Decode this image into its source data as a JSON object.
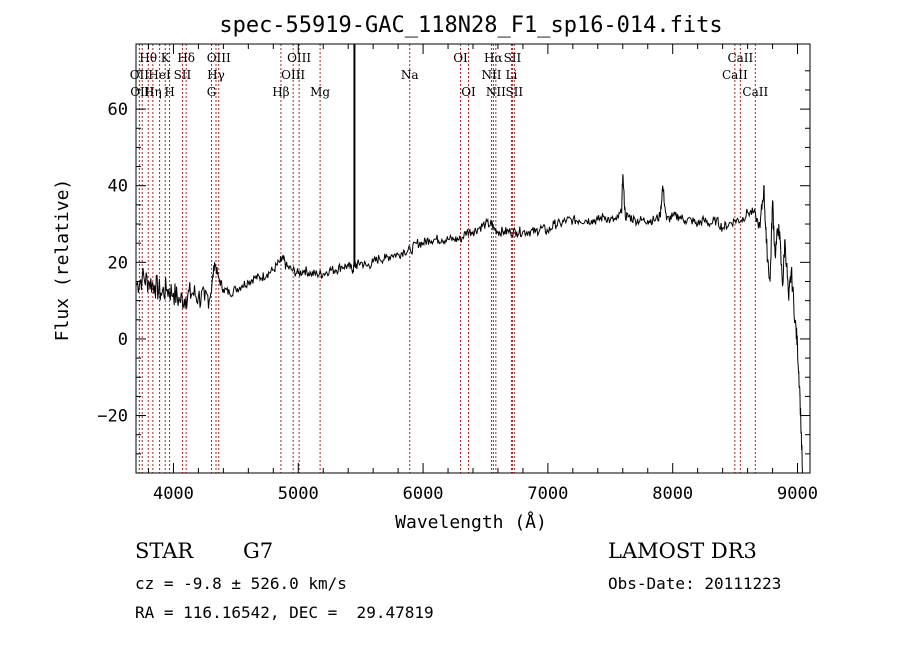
{
  "chart_data": {
    "type": "line",
    "title": "spec-55919-GAC_118N28_F1_sp16-014.fits",
    "xlabel": "Wavelength (Å)",
    "ylabel": "Flux (relative)",
    "xlim": [
      3700,
      9100
    ],
    "ylim": [
      -35,
      77
    ],
    "x_ticks": [
      4000,
      5000,
      6000,
      7000,
      8000,
      9000
    ],
    "y_ticks": [
      -20,
      0,
      20,
      40,
      60
    ],
    "grid": false,
    "spectrum": {
      "name": "flux",
      "x": [
        3700,
        3750,
        3800,
        3850,
        3900,
        3950,
        4000,
        4050,
        4100,
        4150,
        4200,
        4250,
        4300,
        4330,
        4360,
        4400,
        4450,
        4500,
        4550,
        4600,
        4650,
        4700,
        4750,
        4800,
        4850,
        4880,
        4900,
        4950,
        5000,
        5050,
        5100,
        5150,
        5200,
        5250,
        5300,
        5350,
        5400,
        5440,
        5450,
        5460,
        5500,
        5550,
        5600,
        5650,
        5700,
        5750,
        5800,
        5850,
        5900,
        5950,
        6000,
        6050,
        6100,
        6150,
        6200,
        6250,
        6300,
        6350,
        6400,
        6450,
        6500,
        6550,
        6563,
        6600,
        6650,
        6700,
        6750,
        6800,
        6850,
        6900,
        6950,
        7000,
        7050,
        7100,
        7150,
        7200,
        7250,
        7300,
        7350,
        7400,
        7450,
        7500,
        7550,
        7590,
        7600,
        7620,
        7650,
        7700,
        7750,
        7800,
        7850,
        7900,
        7920,
        7950,
        8000,
        8050,
        8100,
        8150,
        8200,
        8250,
        8300,
        8350,
        8400,
        8450,
        8500,
        8550,
        8600,
        8650,
        8700,
        8730,
        8750,
        8780,
        8800,
        8820,
        8850,
        8880,
        8900,
        8930,
        8950,
        8980,
        9000,
        9020,
        9040
      ],
      "y": [
        14,
        16,
        15,
        14,
        12,
        13,
        12,
        10,
        11,
        12,
        11,
        10,
        12,
        20,
        16,
        13,
        12,
        13,
        14,
        15,
        16,
        16,
        17,
        18,
        20,
        21,
        19,
        18,
        17,
        18,
        17,
        17,
        17,
        18,
        18,
        19,
        19,
        18,
        20,
        19,
        20,
        19,
        20,
        21,
        21,
        22,
        22,
        23,
        23,
        25,
        25,
        26,
        26,
        26,
        26,
        26,
        26,
        28,
        28,
        29,
        30,
        30,
        29,
        28,
        28,
        28,
        28,
        28,
        28,
        28,
        29,
        28,
        30,
        30,
        31,
        31,
        31,
        31,
        31,
        31,
        32,
        31,
        31,
        33,
        43,
        32,
        32,
        31,
        31,
        31,
        31,
        32,
        40,
        31,
        32,
        32,
        31,
        31,
        30,
        31,
        30,
        31,
        29,
        30,
        31,
        31,
        33,
        33,
        29,
        40,
        25,
        15,
        36,
        22,
        30,
        14,
        26,
        10,
        18,
        5,
        -2,
        -15,
        -35
      ]
    },
    "spike": {
      "x": 5450,
      "y_top": 80,
      "y_bottom": 20
    },
    "lines": [
      {
        "label": "Hθ",
        "x": 3798,
        "row": 1
      },
      {
        "label": "OII",
        "x": 3727,
        "row": 2
      },
      {
        "label": "OIII",
        "x": 3750,
        "row": 3
      },
      {
        "label": "K",
        "x": 3934,
        "row": 1
      },
      {
        "label": "HeI",
        "x": 3889,
        "row": 2
      },
      {
        "label": "Hη",
        "x": 3835,
        "row": 3
      },
      {
        "label": "H",
        "x": 3969,
        "row": 3
      },
      {
        "label": "Hδ",
        "x": 4102,
        "row": 1
      },
      {
        "label": "SII",
        "x": 4072,
        "row": 2
      },
      {
        "label": "OIII",
        "x": 4363,
        "row": 1
      },
      {
        "label": "Hγ",
        "x": 4341,
        "row": 2
      },
      {
        "label": "G",
        "x": 4305,
        "row": 3
      },
      {
        "label": "OIII",
        "x": 5007,
        "row": 1
      },
      {
        "label": "OIII",
        "x": 4959,
        "row": 2
      },
      {
        "label": "Hβ",
        "x": 4861,
        "row": 3
      },
      {
        "label": "Mg",
        "x": 5175,
        "row": 3
      },
      {
        "label": "Na",
        "x": 5893,
        "row": 2
      },
      {
        "label": "OI",
        "x": 6300,
        "row": 1
      },
      {
        "label": "OI",
        "x": 6364,
        "row": 3
      },
      {
        "label": "Hα",
        "x": 6563,
        "row": 1
      },
      {
        "label": "SII",
        "x": 6716,
        "row": 1
      },
      {
        "label": "NII",
        "x": 6548,
        "row": 2
      },
      {
        "label": "Li",
        "x": 6708,
        "row": 2
      },
      {
        "label": "NII",
        "x": 6583,
        "row": 3
      },
      {
        "label": "SII",
        "x": 6731,
        "row": 3
      },
      {
        "label": "CaII",
        "x": 8542,
        "row": 1
      },
      {
        "label": "CaII",
        "x": 8498,
        "row": 2
      },
      {
        "label": "CaII",
        "x": 8662,
        "row": 3
      }
    ]
  },
  "footer": {
    "object_type": "STAR",
    "subclass": "G7",
    "survey": "LAMOST DR3",
    "redshift": "cz = -9.8 ± 526.0 km/s",
    "obs_date": "Obs-Date: 20111223",
    "coords": "RA = 116.16542, DEC =  29.47819"
  },
  "colors": {
    "line_marker": "#b22222",
    "spectrum": "#000000"
  }
}
